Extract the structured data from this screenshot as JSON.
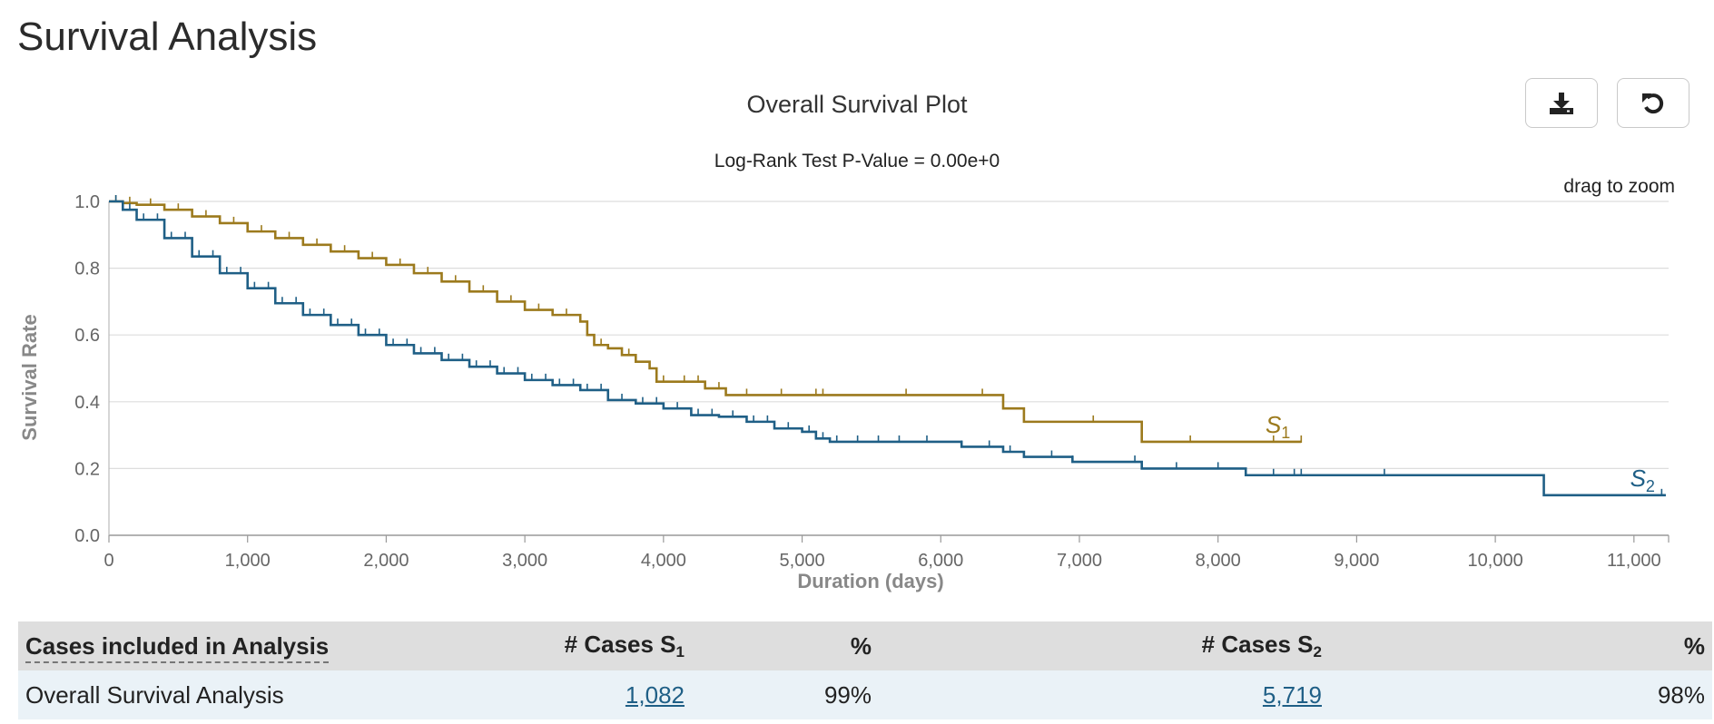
{
  "page": {
    "title": "Survival Analysis"
  },
  "plot": {
    "title": "Overall Survival Plot",
    "pvalue": "Log-Rank Test P-Value = 0.00e+0",
    "hint": "drag to zoom",
    "download_icon": "download-icon",
    "reset_icon": "reset-icon"
  },
  "table": {
    "header_label": "Cases included in Analysis",
    "col_cases_s1": "# Cases S",
    "col_cases_s1_sub": "1",
    "col_pct_s1": "%",
    "col_cases_s2": "# Cases S",
    "col_cases_s2_sub": "2",
    "col_pct_s2": "%",
    "row_label": "Overall Survival Analysis",
    "cases_s1": "1,082",
    "pct_s1": "99%",
    "cases_s2": "5,719",
    "pct_s2": "98%"
  },
  "chart_data": {
    "type": "line",
    "xlabel": "Duration (days)",
    "ylabel": "Survival Rate",
    "xlim": [
      0,
      11250
    ],
    "ylim": [
      0,
      1.0
    ],
    "xticks": [
      0,
      1000,
      2000,
      3000,
      4000,
      5000,
      6000,
      7000,
      8000,
      9000,
      10000,
      11000
    ],
    "xtick_labels": [
      "0",
      "1,000",
      "2,000",
      "3,000",
      "4,000",
      "5,000",
      "6,000",
      "7,000",
      "8,000",
      "9,000",
      "10,000",
      "11,000"
    ],
    "yticks": [
      0,
      0.2,
      0.4,
      0.6,
      0.8,
      1.0
    ],
    "ytick_labels": [
      "0.0",
      "0.2",
      "0.4",
      "0.6",
      "0.8",
      "1.0"
    ],
    "grid": true,
    "series": [
      {
        "name": "S1",
        "label_main": "S",
        "label_sub": "1",
        "color": "#9c7a1d",
        "x": [
          0,
          100,
          200,
          400,
          600,
          800,
          1000,
          1200,
          1400,
          1600,
          1800,
          2000,
          2200,
          2400,
          2600,
          2800,
          3000,
          3200,
          3400,
          3450,
          3500,
          3600,
          3700,
          3800,
          3900,
          3950,
          4100,
          4300,
          4450,
          5000,
          6000,
          6450,
          6600,
          7000,
          7450,
          8000,
          8600
        ],
        "y": [
          1.0,
          0.995,
          0.99,
          0.975,
          0.955,
          0.935,
          0.91,
          0.89,
          0.87,
          0.85,
          0.83,
          0.81,
          0.785,
          0.76,
          0.73,
          0.7,
          0.675,
          0.66,
          0.64,
          0.6,
          0.57,
          0.56,
          0.54,
          0.52,
          0.5,
          0.46,
          0.46,
          0.44,
          0.42,
          0.42,
          0.42,
          0.38,
          0.34,
          0.34,
          0.28,
          0.28,
          0.28
        ],
        "censor_x": [
          50,
          150,
          300,
          500,
          700,
          900,
          1100,
          1300,
          1500,
          1700,
          1900,
          2100,
          2300,
          2500,
          2700,
          2900,
          3100,
          3300,
          3550,
          3750,
          4000,
          4150,
          4250,
          4400,
          4600,
          4850,
          5100,
          5150,
          5750,
          6300,
          6450,
          7100,
          7800,
          8400,
          8600
        ]
      },
      {
        "name": "S2",
        "label_main": "S",
        "label_sub": "2",
        "color": "#1f5f86",
        "x": [
          0,
          100,
          200,
          400,
          600,
          800,
          1000,
          1200,
          1400,
          1600,
          1800,
          2000,
          2200,
          2400,
          2600,
          2800,
          3000,
          3200,
          3400,
          3600,
          3800,
          4000,
          4200,
          4400,
          4600,
          4800,
          5000,
          5100,
          5200,
          6150,
          6450,
          6600,
          6950,
          7450,
          8200,
          10350,
          11230
        ],
        "y": [
          1.0,
          0.975,
          0.945,
          0.89,
          0.835,
          0.785,
          0.74,
          0.695,
          0.66,
          0.63,
          0.6,
          0.57,
          0.545,
          0.525,
          0.505,
          0.485,
          0.465,
          0.45,
          0.435,
          0.405,
          0.395,
          0.38,
          0.36,
          0.355,
          0.34,
          0.32,
          0.31,
          0.29,
          0.28,
          0.265,
          0.25,
          0.235,
          0.22,
          0.2,
          0.18,
          0.12,
          0.12
        ],
        "censor_x": [
          50,
          150,
          250,
          350,
          450,
          550,
          650,
          750,
          850,
          950,
          1050,
          1150,
          1250,
          1350,
          1450,
          1550,
          1650,
          1750,
          1850,
          1950,
          2050,
          2150,
          2250,
          2350,
          2450,
          2550,
          2650,
          2750,
          2850,
          2950,
          3050,
          3150,
          3250,
          3350,
          3450,
          3550,
          3700,
          3850,
          3950,
          4100,
          4250,
          4350,
          4500,
          4650,
          4750,
          4900,
          5050,
          5150,
          5250,
          5400,
          5550,
          5700,
          5900,
          6150,
          6350,
          6500,
          6800,
          6950,
          7400,
          7700,
          8000,
          8400,
          8550,
          8600,
          9200,
          11200
        ]
      }
    ]
  }
}
